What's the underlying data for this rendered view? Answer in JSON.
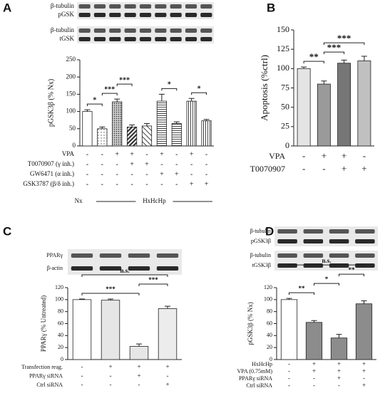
{
  "chart_data": [
    {
      "type": "bar",
      "panel": "A",
      "blot_labels": [
        [
          "β-tubulin",
          "pGSK"
        ],
        [
          "β-tubulin",
          "tGSK"
        ]
      ],
      "ylabel": "pGSK3β (% Nx)",
      "ylim": [
        0,
        250
      ],
      "yticks": [
        0,
        50,
        100,
        150,
        200,
        250
      ],
      "values": [
        100,
        50,
        128,
        55,
        58,
        130,
        65,
        130,
        73
      ],
      "errors": [
        5,
        5,
        8,
        6,
        7,
        20,
        5,
        8,
        4
      ],
      "colors": [
        "#ffffff",
        "#ffffff",
        "#ffffff",
        "#ffffff",
        "#ffffff",
        "#ffffff",
        "#ffffff",
        "#ffffff",
        "#ffffff"
      ],
      "patterns": [
        "none",
        "dots",
        "dots-dark",
        "hatch-dark",
        "hatch",
        "hlines",
        "hlines",
        "vlines",
        "vlines"
      ],
      "rows": [
        {
          "label": "VPA",
          "signs": [
            "-",
            "-",
            "+",
            "+",
            "-",
            "+",
            "-",
            "+",
            "-"
          ]
        },
        {
          "label": "T0070907 (γ inh.)",
          "signs": [
            "-",
            "-",
            "-",
            "+",
            "+",
            "-",
            "-",
            "-",
            "-"
          ]
        },
        {
          "label": "GW6471 (α inh.)",
          "signs": [
            "-",
            "-",
            "-",
            "-",
            "-",
            "+",
            "+",
            "-",
            "-"
          ]
        },
        {
          "label": "GSK3787 (β/δ inh.)",
          "signs": [
            "-",
            "-",
            "-",
            "-",
            "-",
            "-",
            "-",
            "+",
            "+"
          ]
        }
      ],
      "groups": [
        {
          "label": "Nx",
          "span": [
            0,
            0
          ]
        },
        {
          "label": "HxHcHp",
          "span": [
            1,
            8
          ]
        }
      ],
      "significance": [
        {
          "text": "*",
          "between": [
            0,
            1
          ]
        },
        {
          "text": "***",
          "between": [
            1,
            2
          ]
        },
        {
          "text": "***",
          "between": [
            2,
            3
          ]
        },
        {
          "text": "*",
          "between": [
            5,
            6
          ]
        },
        {
          "text": "*",
          "between": [
            7,
            8
          ]
        }
      ]
    },
    {
      "type": "bar",
      "panel": "B",
      "ylabel": "Apoptosis (%ctrl)",
      "ylim": [
        0,
        150
      ],
      "yticks": [
        0,
        25,
        50,
        75,
        100,
        125,
        150
      ],
      "values": [
        100,
        80,
        107,
        110
      ],
      "errors": [
        2,
        4,
        4,
        6
      ],
      "colors": [
        "#e4e4e4",
        "#9a9a9a",
        "#767676",
        "#c0c0c0"
      ],
      "patterns": [
        "none",
        "none",
        "none",
        "none"
      ],
      "rows": [
        {
          "label": "VPA",
          "signs": [
            "-",
            "+",
            "+",
            "-"
          ]
        },
        {
          "label": "T0070907",
          "signs": [
            "-",
            "-",
            "+",
            "+"
          ]
        }
      ],
      "significance": [
        {
          "text": "**",
          "between": [
            0,
            1
          ]
        },
        {
          "text": "***",
          "between": [
            1,
            2
          ]
        },
        {
          "text": "***",
          "between": [
            1,
            3
          ]
        }
      ]
    },
    {
      "type": "bar",
      "panel": "C",
      "blot_labels": [
        [
          "PPARγ",
          "β-actin"
        ]
      ],
      "ylabel": "PPARγ (% Untreated)",
      "ylim": [
        0,
        120
      ],
      "yticks": [
        0,
        20,
        40,
        60,
        80,
        100,
        120
      ],
      "values": [
        100,
        99,
        22,
        85
      ],
      "errors": [
        1,
        2,
        4,
        4
      ],
      "colors": [
        "#ffffff",
        "#e6e6e6",
        "#e6e6e6",
        "#ececec"
      ],
      "patterns": [
        "none",
        "none",
        "none",
        "none"
      ],
      "rows": [
        {
          "label": "Transfection reag.",
          "signs": [
            "-",
            "+",
            "+",
            "+"
          ]
        },
        {
          "label": "PPARγ siRNA",
          "signs": [
            "-",
            "-",
            "+",
            "-"
          ]
        },
        {
          "label": "Ctrl siRNA",
          "signs": [
            "-",
            "-",
            "-",
            "+"
          ]
        }
      ],
      "significance": [
        {
          "text": "***",
          "between": [
            0,
            2
          ]
        },
        {
          "text": "***",
          "between": [
            2,
            3
          ]
        },
        {
          "text": "n.s.",
          "between": [
            0,
            3
          ]
        }
      ]
    },
    {
      "type": "bar",
      "panel": "D",
      "blot_labels": [
        [
          "β-tubulin",
          "pGSK3β"
        ],
        [
          "β-tubulin",
          "tGSK3β"
        ]
      ],
      "ylabel": "pGSK3β (% Nx)",
      "ylim": [
        0,
        120
      ],
      "yticks": [
        0,
        20,
        40,
        60,
        80,
        100,
        120
      ],
      "values": [
        100,
        62,
        36,
        93
      ],
      "errors": [
        2,
        3,
        6,
        5
      ],
      "colors": [
        "#ffffff",
        "#8c8c8c",
        "#8c8c8c",
        "#8c8c8c"
      ],
      "patterns": [
        "none",
        "none",
        "none",
        "none"
      ],
      "rows": [
        {
          "label": "HxHcHp",
          "signs": [
            "-",
            "+",
            "+",
            "+"
          ]
        },
        {
          "label": "VPA (0.75mM)",
          "signs": [
            "-",
            "+",
            "+",
            "+"
          ]
        },
        {
          "label": "PPARγ siRNA",
          "signs": [
            "-",
            "-",
            "+",
            "-"
          ]
        },
        {
          "label": "Ctrl siRNA",
          "signs": [
            "-",
            "-",
            "-",
            "+"
          ]
        }
      ],
      "significance": [
        {
          "text": "**",
          "between": [
            0,
            1
          ]
        },
        {
          "text": "*",
          "between": [
            1,
            2
          ]
        },
        {
          "text": "**",
          "between": [
            2,
            3
          ]
        },
        {
          "text": "n.s.",
          "between": [
            0,
            3
          ]
        }
      ]
    }
  ]
}
